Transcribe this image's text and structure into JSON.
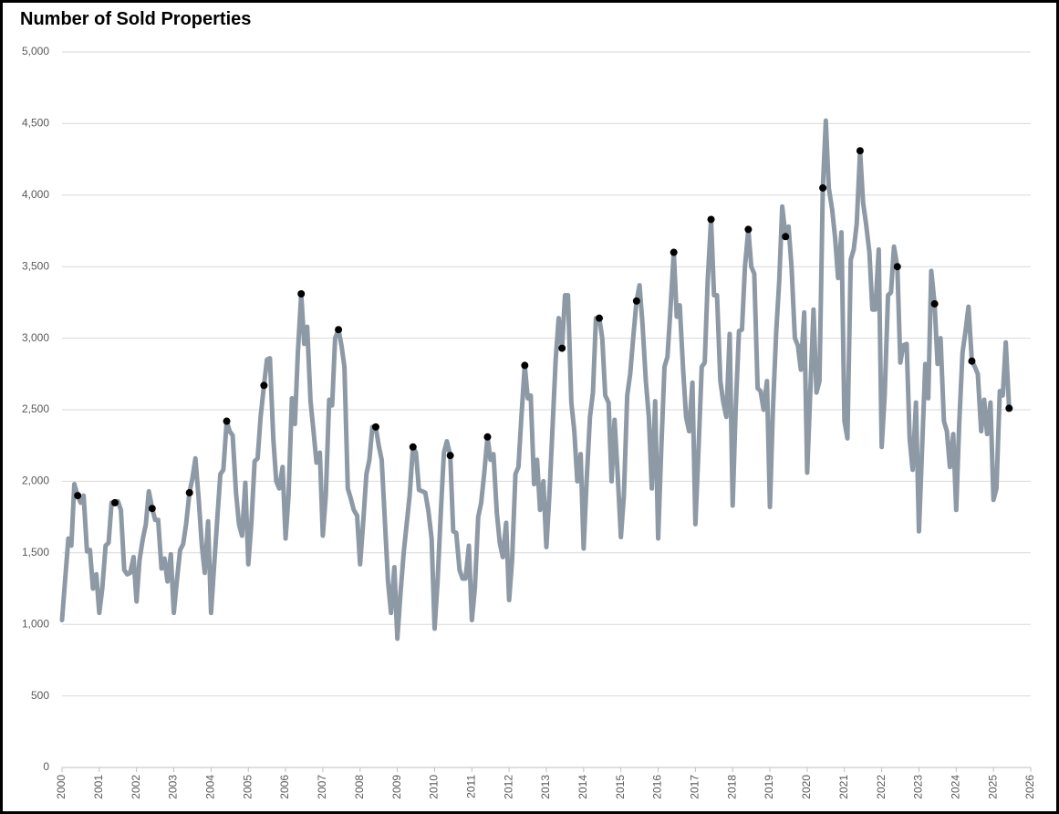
{
  "chart_data": {
    "type": "line",
    "title": "Number of Sold Properties",
    "xlim": [
      2000,
      2026
    ],
    "xticks": [
      2000,
      2001,
      2002,
      2003,
      2004,
      2005,
      2006,
      2007,
      2008,
      2009,
      2010,
      2011,
      2012,
      2013,
      2014,
      2015,
      2016,
      2017,
      2018,
      2019,
      2020,
      2021,
      2022,
      2023,
      2024,
      2025,
      2026
    ],
    "ylim": [
      0,
      5000
    ],
    "yticks": [
      0,
      500,
      {
        "value": 1000,
        "label": "1,000"
      },
      {
        "value": 1500,
        "label": "1,500"
      },
      {
        "value": 2000,
        "label": "2,000"
      },
      {
        "value": 2500,
        "label": "2,500"
      },
      {
        "value": 3000,
        "label": "3,000"
      },
      {
        "value": 3500,
        "label": "3,500"
      },
      {
        "value": 4000,
        "label": "4,000"
      },
      {
        "value": 4500,
        "label": "4,500"
      },
      {
        "value": 5000,
        "label": "5,000"
      }
    ],
    "grid": true,
    "x": [
      2000,
      2000.08,
      2000.17,
      2000.25,
      2000.33,
      2000.42,
      2000.5,
      2000.58,
      2000.67,
      2000.75,
      2000.83,
      2000.92,
      2001,
      2001.08,
      2001.17,
      2001.25,
      2001.33,
      2001.42,
      2001.5,
      2001.58,
      2001.67,
      2001.75,
      2001.83,
      2001.92,
      2002,
      2002.08,
      2002.17,
      2002.25,
      2002.33,
      2002.42,
      2002.5,
      2002.58,
      2002.67,
      2002.75,
      2002.83,
      2002.92,
      2003,
      2003.08,
      2003.17,
      2003.25,
      2003.33,
      2003.42,
      2003.5,
      2003.58,
      2003.67,
      2003.75,
      2003.83,
      2003.92,
      2004,
      2004.08,
      2004.17,
      2004.25,
      2004.33,
      2004.42,
      2004.5,
      2004.58,
      2004.67,
      2004.75,
      2004.83,
      2004.92,
      2005,
      2005.08,
      2005.17,
      2005.25,
      2005.33,
      2005.42,
      2005.5,
      2005.58,
      2005.67,
      2005.75,
      2005.83,
      2005.92,
      2006,
      2006.08,
      2006.17,
      2006.25,
      2006.33,
      2006.42,
      2006.5,
      2006.58,
      2006.67,
      2006.75,
      2006.83,
      2006.92,
      2007,
      2007.08,
      2007.17,
      2007.25,
      2007.33,
      2007.42,
      2007.5,
      2007.58,
      2007.67,
      2007.75,
      2007.83,
      2007.92,
      2008,
      2008.08,
      2008.17,
      2008.25,
      2008.33,
      2008.42,
      2008.5,
      2008.58,
      2008.67,
      2008.75,
      2008.83,
      2008.92,
      2009,
      2009.08,
      2009.17,
      2009.25,
      2009.33,
      2009.42,
      2009.5,
      2009.58,
      2009.67,
      2009.75,
      2009.83,
      2009.92,
      2010,
      2010.08,
      2010.17,
      2010.25,
      2010.33,
      2010.42,
      2010.5,
      2010.58,
      2010.67,
      2010.75,
      2010.83,
      2010.92,
      2011,
      2011.08,
      2011.17,
      2011.25,
      2011.33,
      2011.42,
      2011.5,
      2011.58,
      2011.67,
      2011.75,
      2011.83,
      2011.92,
      2012,
      2012.08,
      2012.17,
      2012.25,
      2012.33,
      2012.42,
      2012.5,
      2012.58,
      2012.67,
      2012.75,
      2012.83,
      2012.92,
      2013,
      2013.08,
      2013.17,
      2013.25,
      2013.33,
      2013.42,
      2013.5,
      2013.58,
      2013.67,
      2013.75,
      2013.83,
      2013.92,
      2014,
      2014.08,
      2014.17,
      2014.25,
      2014.33,
      2014.42,
      2014.5,
      2014.58,
      2014.67,
      2014.75,
      2014.83,
      2014.92,
      2015,
      2015.08,
      2015.17,
      2015.25,
      2015.33,
      2015.42,
      2015.5,
      2015.58,
      2015.67,
      2015.75,
      2015.83,
      2015.92,
      2016,
      2016.08,
      2016.17,
      2016.25,
      2016.33,
      2016.42,
      2016.5,
      2016.58,
      2016.67,
      2016.75,
      2016.83,
      2016.92,
      2017,
      2017.08,
      2017.17,
      2017.25,
      2017.33,
      2017.42,
      2017.5,
      2017.58,
      2017.67,
      2017.75,
      2017.83,
      2017.92,
      2018,
      2018.08,
      2018.17,
      2018.25,
      2018.33,
      2018.42,
      2018.5,
      2018.58,
      2018.67,
      2018.75,
      2018.83,
      2018.92,
      2019,
      2019.08,
      2019.17,
      2019.25,
      2019.33,
      2019.42,
      2019.5,
      2019.58,
      2019.67,
      2019.75,
      2019.83,
      2019.92,
      2020,
      2020.08,
      2020.17,
      2020.25,
      2020.33,
      2020.42,
      2020.5,
      2020.58,
      2020.67,
      2020.75,
      2020.83,
      2020.92,
      2021,
      2021.08,
      2021.17,
      2021.25,
      2021.33,
      2021.42,
      2021.5,
      2021.58,
      2021.67,
      2021.75,
      2021.83,
      2021.92,
      2022,
      2022.08,
      2022.17,
      2022.25,
      2022.33,
      2022.42,
      2022.5,
      2022.58,
      2022.67,
      2022.75,
      2022.83,
      2022.92,
      2023,
      2023.08,
      2023.17,
      2023.25,
      2023.33,
      2023.42,
      2023.5,
      2023.58,
      2023.67,
      2023.75,
      2023.83,
      2023.92,
      2024,
      2024.08,
      2024.17,
      2024.25,
      2024.33,
      2024.42,
      2024.5,
      2024.58,
      2024.67,
      2024.75,
      2024.83,
      2024.92,
      2025,
      2025.08,
      2025.17,
      2025.25,
      2025.33,
      2025.42
    ],
    "series": [
      {
        "color": "#8d99a5",
        "values": [
          1030,
          1300,
          1600,
          1550,
          1980,
          1900,
          1850,
          1900,
          1510,
          1520,
          1250,
          1350,
          1080,
          1250,
          1550,
          1570,
          1850,
          1850,
          1860,
          1800,
          1380,
          1350,
          1360,
          1470,
          1160,
          1450,
          1600,
          1700,
          1930,
          1810,
          1730,
          1730,
          1390,
          1460,
          1300,
          1490,
          1080,
          1300,
          1520,
          1560,
          1700,
          1920,
          2020,
          2160,
          1870,
          1560,
          1360,
          1720,
          1080,
          1400,
          1750,
          2050,
          2080,
          2420,
          2350,
          2320,
          1920,
          1700,
          1620,
          1990,
          1420,
          1700,
          2140,
          2160,
          2450,
          2670,
          2850,
          2860,
          2300,
          2000,
          1950,
          2100,
          1600,
          1900,
          2580,
          2400,
          2900,
          3310,
          2960,
          3080,
          2560,
          2350,
          2130,
          2200,
          1620,
          1900,
          2570,
          2530,
          3000,
          3060,
          2950,
          2800,
          1950,
          1880,
          1800,
          1760,
          1420,
          1700,
          2050,
          2150,
          2380,
          2380,
          2250,
          2150,
          1700,
          1300,
          1080,
          1400,
          900,
          1200,
          1500,
          1700,
          1900,
          2240,
          2200,
          1940,
          1930,
          1920,
          1800,
          1600,
          970,
          1300,
          1800,
          2200,
          2280,
          2180,
          1650,
          1640,
          1380,
          1320,
          1320,
          1550,
          1030,
          1250,
          1750,
          1850,
          2050,
          2310,
          2150,
          2190,
          1780,
          1570,
          1470,
          1710,
          1170,
          1450,
          2050,
          2100,
          2450,
          2810,
          2580,
          2600,
          1980,
          2150,
          1800,
          2000,
          1540,
          1900,
          2400,
          2850,
          3140,
          2930,
          3300,
          3300,
          2550,
          2350,
          2000,
          2190,
          1530,
          2000,
          2450,
          2620,
          3140,
          3140,
          3000,
          2600,
          2550,
          2000,
          2430,
          2020,
          1610,
          1900,
          2600,
          2750,
          3000,
          3260,
          3370,
          3100,
          2700,
          2450,
          1950,
          2560,
          1600,
          2200,
          2800,
          2870,
          3200,
          3600,
          3150,
          3230,
          2780,
          2450,
          2350,
          2690,
          1700,
          2200,
          2800,
          2830,
          3400,
          3830,
          3300,
          3300,
          2700,
          2550,
          2450,
          3030,
          1830,
          2500,
          3050,
          3060,
          3500,
          3760,
          3500,
          3450,
          2650,
          2630,
          2500,
          2700,
          1820,
          2500,
          3050,
          3400,
          3920,
          3710,
          3780,
          3500,
          3000,
          2950,
          2780,
          3180,
          2060,
          2600,
          3200,
          2620,
          2700,
          4050,
          4520,
          4050,
          3900,
          3700,
          3420,
          3740,
          2420,
          2300,
          3550,
          3620,
          3800,
          4310,
          3950,
          3800,
          3600,
          3200,
          3200,
          3620,
          2240,
          2600,
          3300,
          3320,
          3640,
          3500,
          2830,
          2950,
          2960,
          2300,
          2080,
          2550,
          1650,
          2200,
          2820,
          2580,
          3470,
          3240,
          2820,
          3000,
          2420,
          2350,
          2100,
          2330,
          1800,
          2400,
          2900,
          3050,
          3220,
          2840,
          2800,
          2750,
          2350,
          2570,
          2330,
          2550,
          1870,
          1950,
          2630,
          2600,
          2970,
          2510
        ]
      }
    ],
    "markers": {
      "color": "#000000",
      "x": [
        2000.42,
        2001.42,
        2002.42,
        2003.42,
        2004.42,
        2005.42,
        2006.42,
        2007.42,
        2008.42,
        2009.42,
        2010.42,
        2011.42,
        2012.42,
        2013.42,
        2014.42,
        2015.42,
        2016.42,
        2017.42,
        2018.42,
        2019.42,
        2020.42,
        2021.42,
        2022.42,
        2023.42,
        2024.42,
        2025.42
      ],
      "values": [
        1900,
        1850,
        1810,
        1920,
        2420,
        2670,
        3310,
        3060,
        2380,
        2240,
        2180,
        2310,
        2810,
        2930,
        3140,
        3260,
        3600,
        3830,
        3760,
        3710,
        4050,
        4310,
        3500,
        3240,
        2840,
        2510
      ]
    }
  }
}
